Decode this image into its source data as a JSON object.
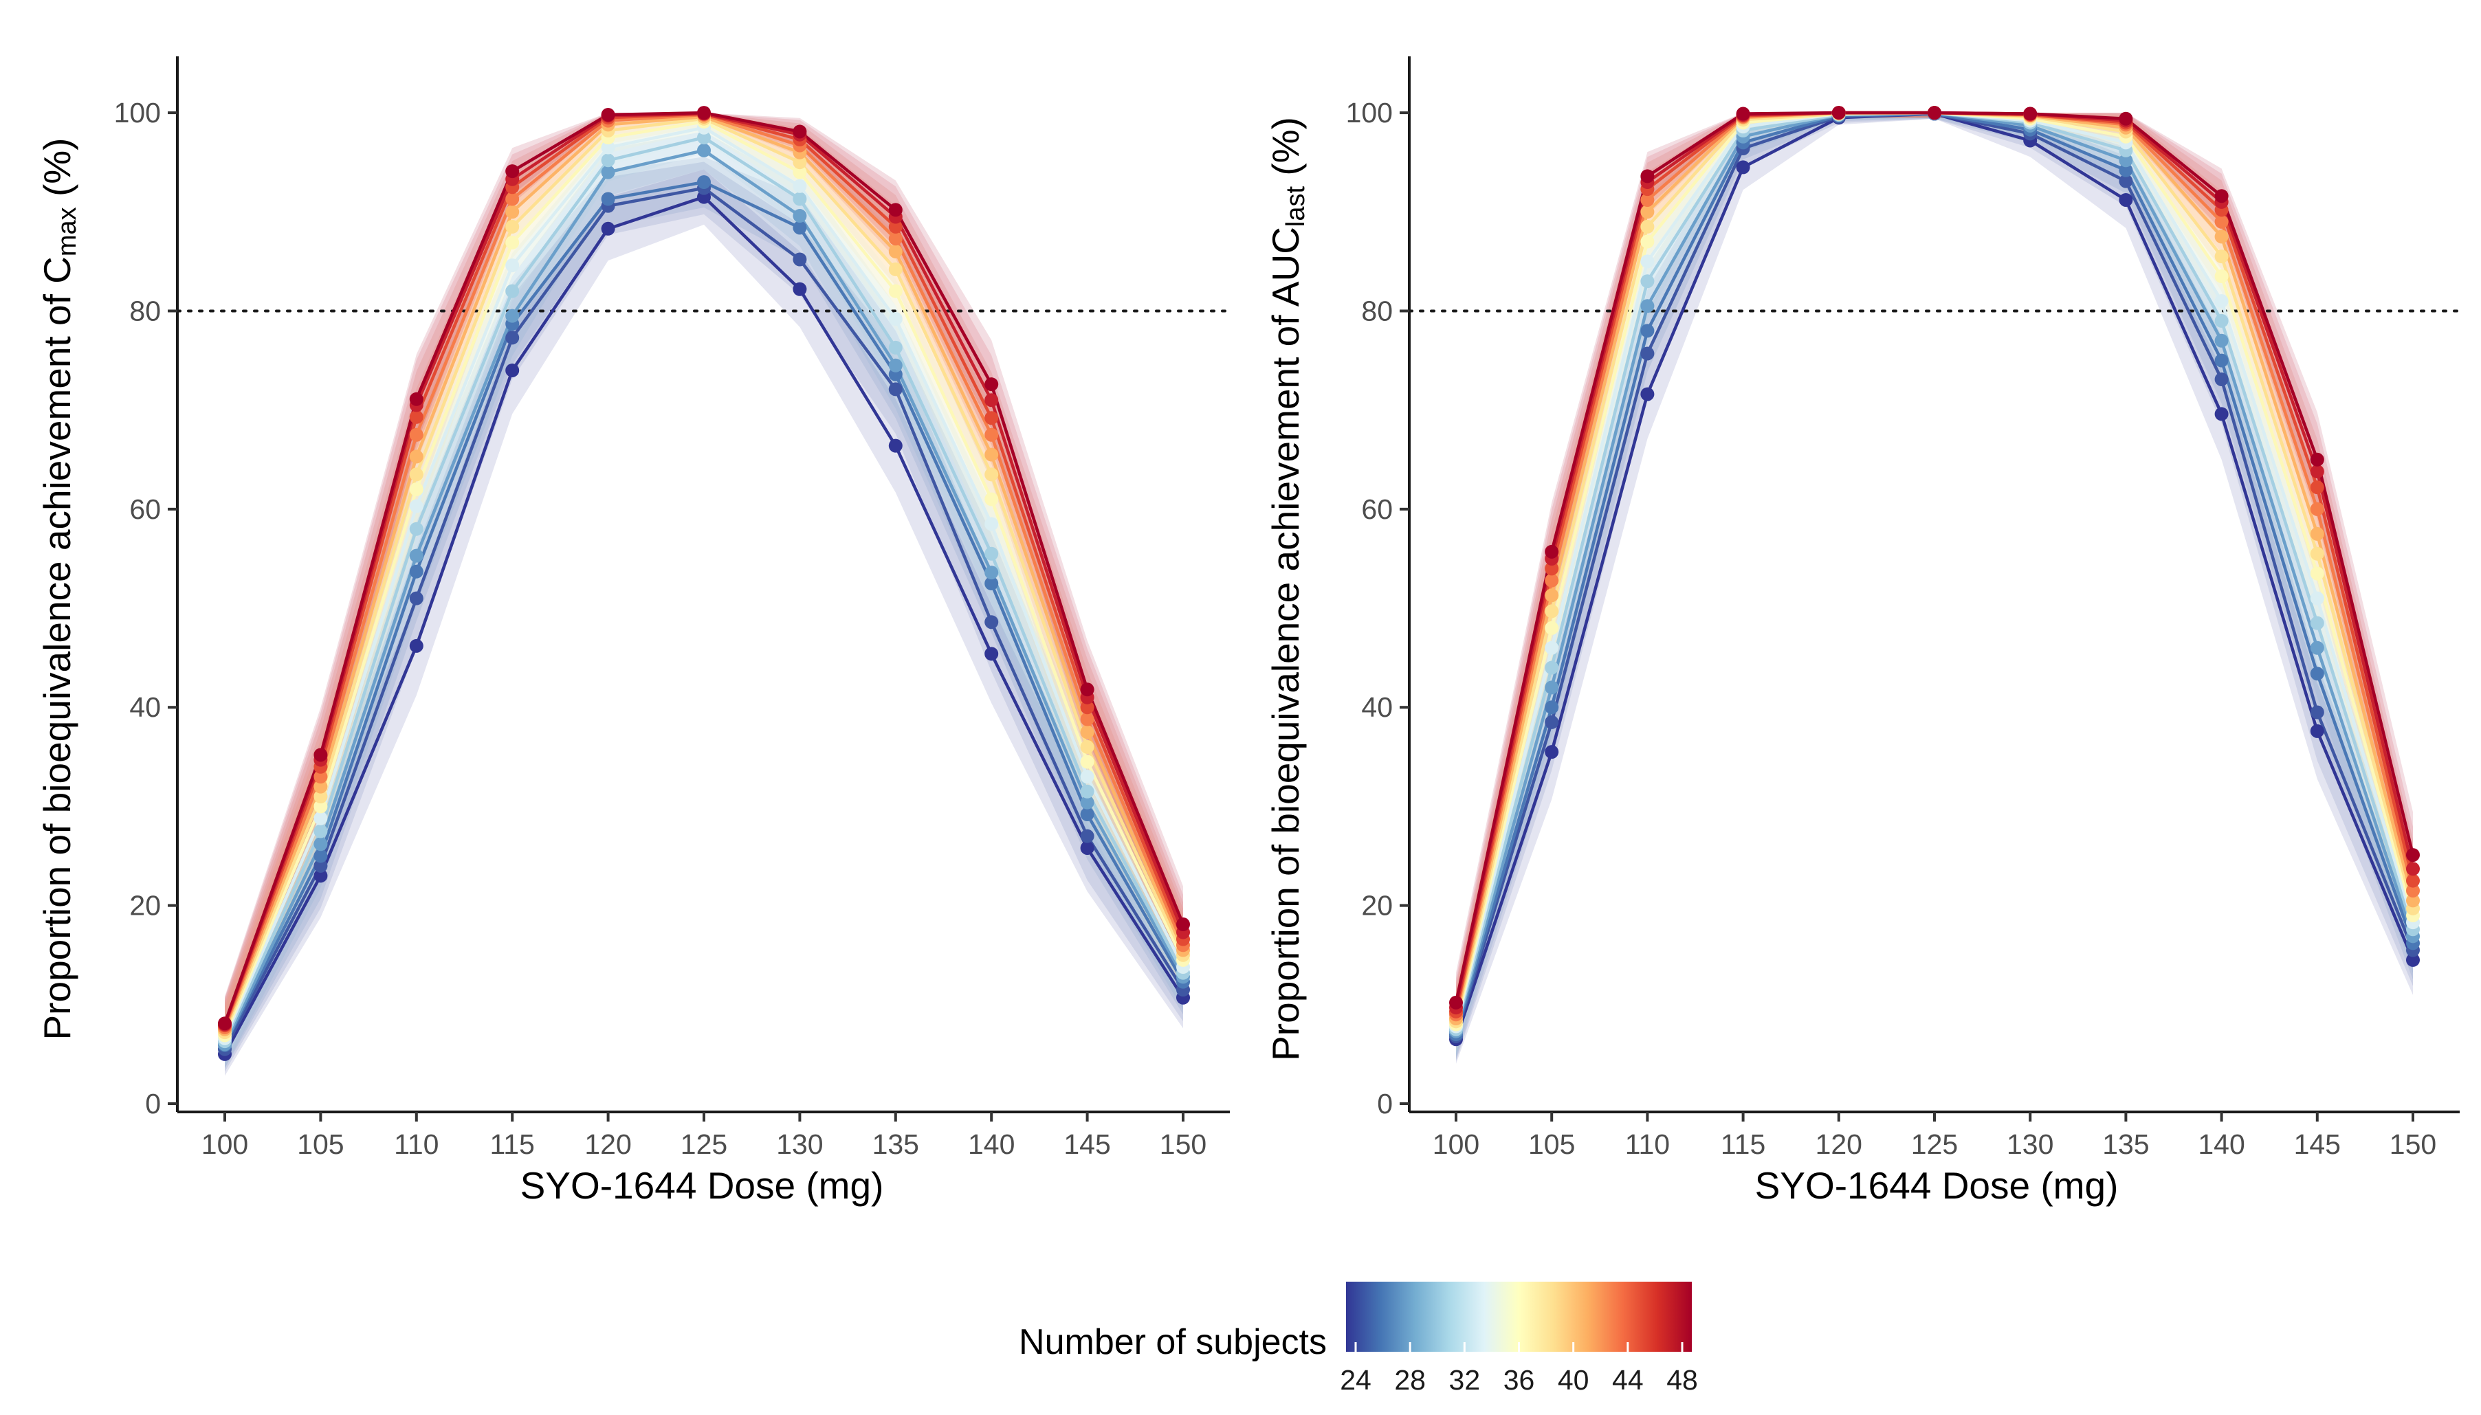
{
  "chart_data": [
    {
      "type": "line",
      "panel": "left",
      "xlabel": "SYO-1644 Dose (mg)",
      "ylabel_parts": {
        "main": "Proportion of bioequivalence achievement of C",
        "sub": "max",
        "tail": " (%)"
      },
      "x": [
        100,
        105,
        110,
        115,
        120,
        125,
        130,
        135,
        140,
        145,
        150
      ],
      "xticks": [
        "100",
        "105",
        "110",
        "115",
        "120",
        "125",
        "130",
        "135",
        "140",
        "145",
        "150"
      ],
      "yticks": [
        "0",
        "20",
        "40",
        "60",
        "80",
        "100"
      ],
      "ylim": [
        0,
        105
      ],
      "reference_line": 80,
      "grid": false,
      "series": [
        {
          "subjects": 24,
          "color": "#313695",
          "values": [
            5.0,
            23.0,
            46.2,
            74.0,
            88.3,
            91.5,
            82.2,
            66.4,
            45.4,
            25.8,
            10.7
          ]
        },
        {
          "subjects": 26,
          "color": "#3f57a3",
          "values": [
            5.5,
            24.0,
            51.0,
            77.3,
            90.6,
            92.4,
            85.2,
            72.1,
            48.6,
            27.0,
            11.5
          ]
        },
        {
          "subjects": 28,
          "color": "#4a78b5",
          "values": [
            5.9,
            25.0,
            53.7,
            78.7,
            91.3,
            93.0,
            88.4,
            73.6,
            52.5,
            29.2,
            12.3
          ]
        },
        {
          "subjects": 30,
          "color": "#6a9fca",
          "values": [
            6.0,
            26.2,
            55.3,
            79.5,
            94.0,
            96.2,
            89.6,
            74.5,
            53.6,
            30.4,
            12.8
          ]
        },
        {
          "subjects": 32,
          "color": "#a4cfe2",
          "values": [
            6.3,
            27.5,
            58.0,
            82.0,
            95.2,
            97.5,
            91.3,
            76.3,
            55.5,
            31.5,
            13.2
          ]
        },
        {
          "subjects": 34,
          "color": "#daeef3",
          "values": [
            6.6,
            28.8,
            60.3,
            84.6,
            96.5,
            98.5,
            92.6,
            79.2,
            58.5,
            33.0,
            13.8
          ]
        },
        {
          "subjects": 36,
          "color": "#fdf8b8",
          "values": [
            6.9,
            30.0,
            62.0,
            86.9,
            97.5,
            99.1,
            94.0,
            82.0,
            61.0,
            34.5,
            14.5
          ]
        },
        {
          "subjects": 38,
          "color": "#fee090",
          "values": [
            7.2,
            31.0,
            63.5,
            88.5,
            98.2,
            99.4,
            95.0,
            84.2,
            63.5,
            36.0,
            15.0
          ]
        },
        {
          "subjects": 40,
          "color": "#fdb466",
          "values": [
            7.5,
            32.0,
            65.3,
            90.0,
            98.8,
            99.6,
            96.0,
            86.0,
            65.5,
            37.5,
            15.5
          ]
        },
        {
          "subjects": 42,
          "color": "#f67d4a",
          "values": [
            7.7,
            33.0,
            67.5,
            91.3,
            99.2,
            99.8,
            96.7,
            87.3,
            67.5,
            38.8,
            16.0
          ]
        },
        {
          "subjects": 44,
          "color": "#e34a33",
          "values": [
            7.9,
            34.0,
            69.3,
            92.5,
            99.5,
            99.9,
            97.3,
            88.5,
            69.2,
            40.0,
            16.6
          ]
        },
        {
          "subjects": 46,
          "color": "#c8202e",
          "values": [
            8.0,
            34.7,
            70.5,
            93.3,
            99.7,
            99.9,
            97.8,
            89.5,
            71.0,
            41.0,
            17.3
          ]
        },
        {
          "subjects": 48,
          "color": "#a50026",
          "values": [
            8.1,
            35.2,
            71.1,
            94.1,
            99.8,
            100.0,
            98.1,
            90.2,
            72.6,
            41.8,
            18.1
          ]
        }
      ]
    },
    {
      "type": "line",
      "panel": "right",
      "xlabel": "SYO-1644 Dose (mg)",
      "ylabel_parts": {
        "main": "Proportion of bioequivalence achievement of AUC",
        "sub": "last",
        "tail": " (%)"
      },
      "x": [
        100,
        105,
        110,
        115,
        120,
        125,
        130,
        135,
        140,
        145,
        150
      ],
      "xticks": [
        "100",
        "105",
        "110",
        "115",
        "120",
        "125",
        "130",
        "135",
        "140",
        "145",
        "150"
      ],
      "yticks": [
        "0",
        "20",
        "40",
        "60",
        "80",
        "100"
      ],
      "ylim": [
        0,
        105
      ],
      "reference_line": 80,
      "grid": false,
      "series": [
        {
          "subjects": 24,
          "color": "#313695",
          "values": [
            6.5,
            35.5,
            71.6,
            94.5,
            99.5,
            99.9,
            97.2,
            91.2,
            69.6,
            37.6,
            14.5
          ]
        },
        {
          "subjects": 26,
          "color": "#3f57a3",
          "values": [
            6.8,
            38.5,
            75.7,
            96.4,
            99.6,
            99.9,
            97.9,
            93.1,
            73.1,
            39.5,
            15.5
          ]
        },
        {
          "subjects": 28,
          "color": "#4a78b5",
          "values": [
            7.0,
            40.0,
            78.0,
            97.0,
            99.7,
            99.9,
            98.3,
            94.2,
            75.0,
            43.4,
            16.2
          ]
        },
        {
          "subjects": 30,
          "color": "#6a9fca",
          "values": [
            7.3,
            42.0,
            80.5,
            97.6,
            99.8,
            100.0,
            98.7,
            95.2,
            77.0,
            46.0,
            16.9
          ]
        },
        {
          "subjects": 32,
          "color": "#a4cfe2",
          "values": [
            7.5,
            44.0,
            83.0,
            98.2,
            99.8,
            100.0,
            99.0,
            96.2,
            79.0,
            48.5,
            17.6
          ]
        },
        {
          "subjects": 34,
          "color": "#daeef3",
          "values": [
            7.8,
            46.0,
            85.0,
            98.6,
            99.9,
            100.0,
            99.2,
            97.0,
            81.0,
            51.0,
            18.3
          ]
        },
        {
          "subjects": 36,
          "color": "#fdf8b8",
          "values": [
            8.0,
            48.0,
            87.0,
            99.0,
            99.9,
            100.0,
            99.4,
            97.6,
            83.5,
            53.5,
            19.0
          ]
        },
        {
          "subjects": 38,
          "color": "#fee090",
          "values": [
            8.3,
            49.7,
            88.5,
            99.3,
            99.9,
            100.0,
            99.6,
            98.1,
            85.5,
            55.5,
            19.7
          ]
        },
        {
          "subjects": 40,
          "color": "#fdb466",
          "values": [
            8.6,
            51.3,
            90.0,
            99.5,
            100.0,
            100.0,
            99.7,
            98.5,
            87.5,
            57.5,
            20.5
          ]
        },
        {
          "subjects": 42,
          "color": "#f67d4a",
          "values": [
            9.0,
            52.8,
            91.2,
            99.6,
            100.0,
            100.0,
            99.8,
            98.8,
            89.0,
            60.0,
            21.5
          ]
        },
        {
          "subjects": 44,
          "color": "#e34a33",
          "values": [
            9.3,
            54.0,
            92.3,
            99.7,
            100.0,
            100.0,
            99.8,
            99.0,
            90.2,
            62.2,
            22.5
          ]
        },
        {
          "subjects": 46,
          "color": "#c8202e",
          "values": [
            9.7,
            55.0,
            93.0,
            99.8,
            100.0,
            100.0,
            99.9,
            99.2,
            91.0,
            63.8,
            23.7
          ]
        },
        {
          "subjects": 48,
          "color": "#a50026",
          "values": [
            10.2,
            55.7,
            93.6,
            99.9,
            100.0,
            100.0,
            99.9,
            99.4,
            91.6,
            65.0,
            25.1
          ]
        }
      ]
    }
  ],
  "legend": {
    "title": "Number of subjects",
    "ticks": [
      "24",
      "28",
      "32",
      "36",
      "40",
      "44",
      "48"
    ],
    "range": [
      24,
      48
    ],
    "placement": "bottom",
    "gradient_colors": [
      "#313695",
      "#4575b4",
      "#74add1",
      "#abd9e9",
      "#e0f3f8",
      "#ffffbf",
      "#fee090",
      "#fdae61",
      "#f46d43",
      "#d73027",
      "#a50026"
    ]
  }
}
